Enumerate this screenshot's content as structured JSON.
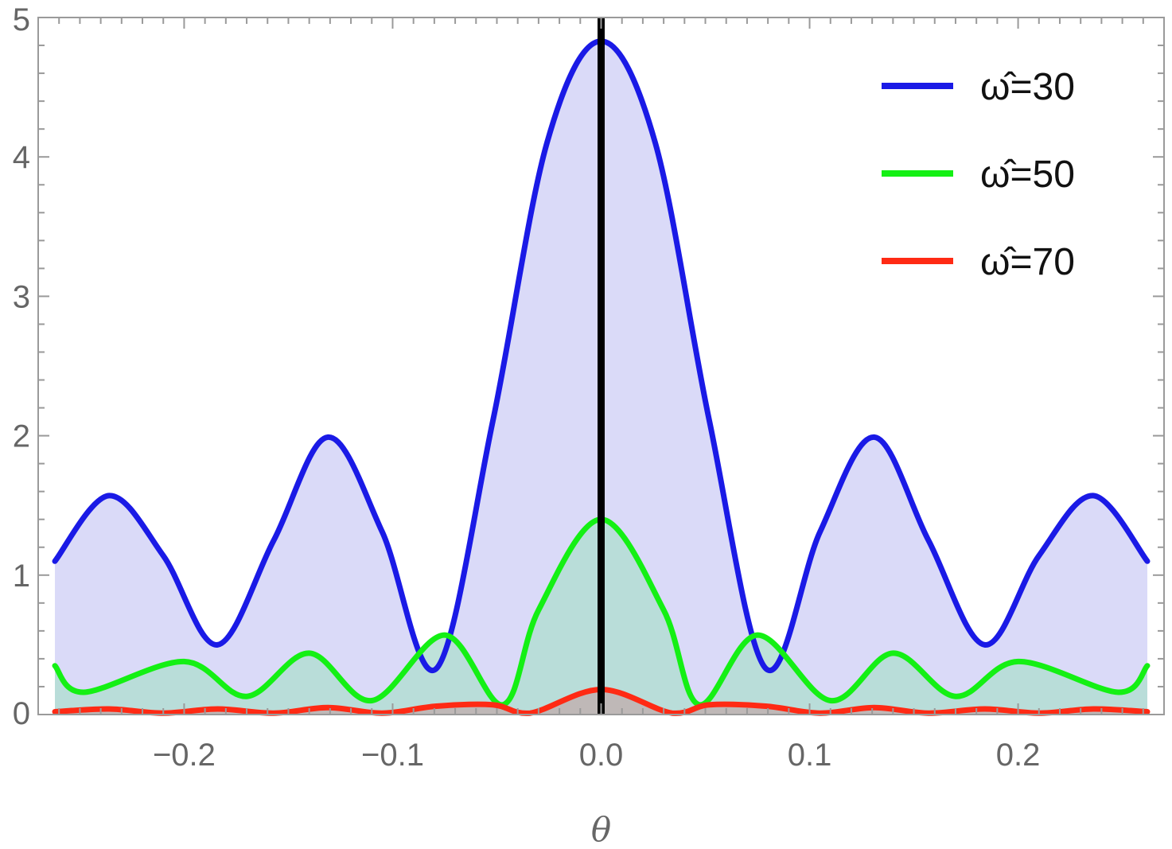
{
  "chart_data": {
    "type": "line",
    "xlabel": "θ",
    "ylabel": "",
    "xlim": [
      -0.27,
      0.27
    ],
    "ylim": [
      0,
      5
    ],
    "x_ticks": [
      -0.2,
      -0.1,
      0.0,
      0.1,
      0.2
    ],
    "x_tick_labels": [
      "−0.2",
      "−0.1",
      "0.0",
      "0.1",
      "0.2"
    ],
    "y_ticks": [
      0,
      1,
      2,
      3,
      4,
      5
    ],
    "y_tick_labels": [
      "0",
      "1",
      "2",
      "3",
      "4",
      "5"
    ],
    "grid": false,
    "legend_position": "top-right",
    "vertical_line": {
      "x": 0.0,
      "color": "#000000"
    },
    "series": [
      {
        "name": "ω̂=30",
        "color": "#1a1ae6",
        "fill": "#d4d4f7",
        "x": [
          -0.262,
          -0.236,
          -0.21,
          -0.184,
          -0.157,
          -0.131,
          -0.105,
          -0.079,
          -0.052,
          -0.026,
          0.0,
          0.026,
          0.052,
          0.079,
          0.105,
          0.131,
          0.157,
          0.184,
          0.21,
          0.236,
          0.262
        ],
        "y": [
          1.1,
          1.57,
          1.14,
          0.5,
          1.25,
          1.99,
          1.31,
          0.33,
          2.1,
          4.1,
          4.83,
          4.1,
          2.1,
          0.33,
          1.31,
          1.99,
          1.25,
          0.5,
          1.14,
          1.57,
          1.1
        ]
      },
      {
        "name": "ω̂=50",
        "color": "#14f014",
        "fill": "#b3ddd3",
        "x": [
          -0.262,
          -0.248,
          -0.2,
          -0.17,
          -0.14,
          -0.11,
          -0.075,
          -0.047,
          -0.03,
          0.0,
          0.03,
          0.047,
          0.075,
          0.11,
          0.14,
          0.17,
          0.2,
          0.248,
          0.262
        ],
        "y": [
          0.35,
          0.16,
          0.38,
          0.13,
          0.44,
          0.1,
          0.57,
          0.07,
          0.75,
          1.4,
          0.75,
          0.07,
          0.57,
          0.1,
          0.44,
          0.13,
          0.38,
          0.16,
          0.35
        ]
      },
      {
        "name": "ω̂=70",
        "color": "#ff2a14",
        "fill": "#bfb2b0",
        "x": [
          -0.262,
          -0.236,
          -0.21,
          -0.184,
          -0.157,
          -0.131,
          -0.105,
          -0.079,
          -0.052,
          -0.034,
          0.0,
          0.034,
          0.052,
          0.079,
          0.105,
          0.131,
          0.157,
          0.184,
          0.21,
          0.236,
          0.262
        ],
        "y": [
          0.02,
          0.04,
          0.01,
          0.04,
          0.01,
          0.05,
          0.01,
          0.06,
          0.07,
          0.01,
          0.18,
          0.01,
          0.07,
          0.06,
          0.01,
          0.05,
          0.01,
          0.04,
          0.01,
          0.04,
          0.02
        ]
      }
    ]
  }
}
